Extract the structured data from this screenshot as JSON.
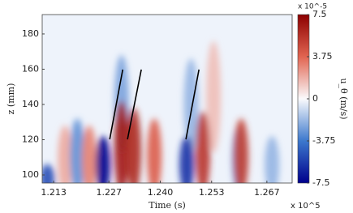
{
  "chart_data": {
    "type": "contour",
    "xlabel": "Time (s)",
    "ylabel": "z (mm)",
    "x_exponent": "x 10^5",
    "colorbar_label": "u_θ (m/s)",
    "colorbar_exponent": "x 10^-5",
    "xlim": [
      1.2101,
      1.2734
    ],
    "ylim": [
      95.4,
      191
    ],
    "xticks": [
      1.213,
      1.227,
      {
        "value": 1.24,
        "label": "1.240"
      },
      1.253,
      1.267
    ],
    "yticks": [
      100,
      120,
      140,
      160,
      180
    ],
    "clim": [
      -7.5,
      7.5
    ],
    "cticks": [
      7.5,
      3.75,
      0,
      -3.75,
      -7.5
    ],
    "cells": [
      {
        "x": 1.2114,
        "z": [
          95,
          106
        ],
        "value": -5
      },
      {
        "x": 1.2159,
        "z": [
          95,
          128
        ],
        "value": 2
      },
      {
        "x": 1.219,
        "z": [
          95,
          132
        ],
        "value": -3
      },
      {
        "x": 1.222,
        "z": [
          95,
          128
        ],
        "value": 3
      },
      {
        "x": 1.2302,
        "z": [
          118,
          168
        ],
        "value": -2.5
      },
      {
        "x": 1.2255,
        "z": [
          95,
          122
        ],
        "value": -7.5
      },
      {
        "x": 1.2302,
        "z": [
          95,
          142
        ],
        "value": 6.5
      },
      {
        "x": 1.2333,
        "z": [
          95,
          138
        ],
        "value": 6
      },
      {
        "x": 1.2385,
        "z": [
          95,
          132
        ],
        "value": 4
      },
      {
        "x": 1.2535,
        "z": [
          118,
          176
        ],
        "value": 1.5
      },
      {
        "x": 1.2478,
        "z": [
          118,
          166
        ],
        "value": -2
      },
      {
        "x": 1.2467,
        "z": [
          95,
          122
        ],
        "value": -6
      },
      {
        "x": 1.2508,
        "z": [
          95,
          136
        ],
        "value": 5.5
      },
      {
        "x": 1.26,
        "z": [
          95,
          128
        ],
        "value": -3
      },
      {
        "x": 1.2605,
        "z": [
          95,
          132
        ],
        "value": 5
      },
      {
        "x": 1.2683,
        "z": [
          95,
          122
        ],
        "value": -2
      }
    ],
    "lines": [
      {
        "x": [
          1.2272,
          1.2305
        ],
        "z": [
          120.2,
          159.8
        ]
      },
      {
        "x": [
          1.2317,
          1.2352
        ],
        "z": [
          120.2,
          159.8
        ]
      },
      {
        "x": [
          1.2465,
          1.2498
        ],
        "z": [
          120.2,
          159.8
        ]
      }
    ]
  }
}
